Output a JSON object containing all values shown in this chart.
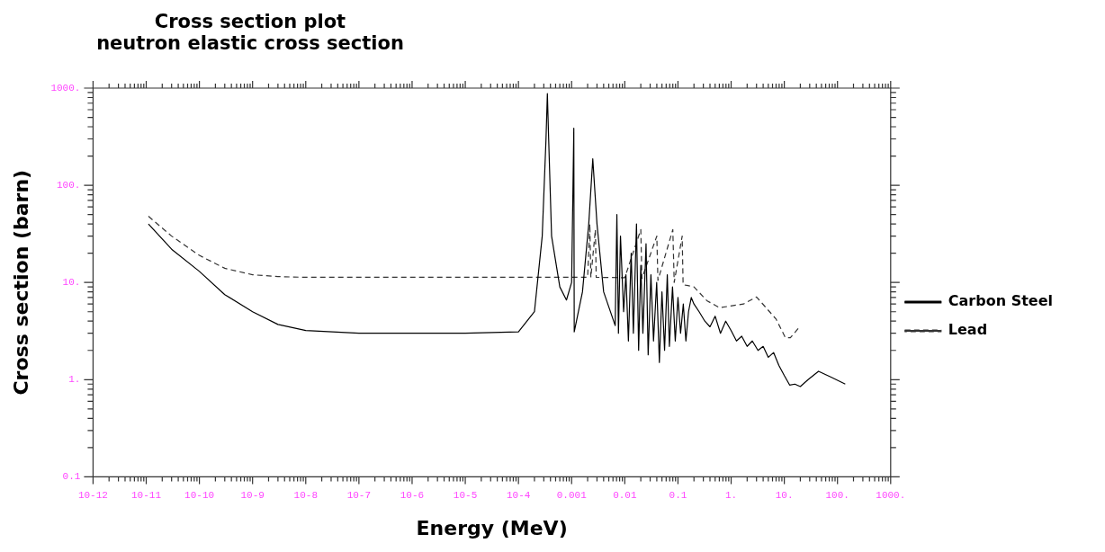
{
  "chart_data": {
    "type": "line",
    "title": "Cross section plot",
    "subtitle": "neutron elastic cross section",
    "xlabel": "Energy (MeV)",
    "ylabel": "Cross section (barn)",
    "log": "xy",
    "grid": false,
    "legend": "right",
    "marker": "none",
    "xlim": [
      1e-12,
      1000
    ],
    "ylim": [
      0.1,
      1000
    ],
    "xticks": [
      {
        "value": 1e-12,
        "label": "10-12"
      },
      {
        "value": 1e-11,
        "label": "10-11"
      },
      {
        "value": 1e-10,
        "label": "10-10"
      },
      {
        "value": 1e-09,
        "label": "10-9"
      },
      {
        "value": 1e-08,
        "label": "10-8"
      },
      {
        "value": 1e-07,
        "label": "10-7"
      },
      {
        "value": 1e-06,
        "label": "10-6"
      },
      {
        "value": 1e-05,
        "label": "10-5"
      },
      {
        "value": 0.0001,
        "label": "10-4"
      },
      0.001,
      0.01,
      0.1,
      {
        "value": 1,
        "label": "1."
      },
      {
        "value": 10,
        "label": "10."
      },
      {
        "value": 100,
        "label": "100."
      },
      {
        "value": 1000,
        "label": "1000."
      }
    ],
    "yticks": [
      0.1,
      {
        "value": 1,
        "label": "1."
      },
      {
        "value": 10,
        "label": "10."
      },
      {
        "value": 100,
        "label": "100."
      },
      {
        "value": 1000,
        "label": "1000."
      }
    ],
    "series": [
      {
        "name": "Carbon Steel",
        "color": "#000000",
        "line_style": "solid",
        "x": [
          1.1e-11,
          3e-11,
          1e-10,
          3e-10,
          1e-09,
          3e-09,
          1e-08,
          1e-07,
          1e-05,
          0.0001,
          0.0002,
          0.00028,
          0.00033,
          0.00035,
          0.00037,
          0.00042,
          0.0006,
          0.0008,
          0.001,
          0.0011,
          0.00112,
          0.0016,
          0.0021,
          0.0025,
          0.003,
          0.004,
          0.0066,
          0.0071,
          0.0076,
          0.0083,
          0.0095,
          0.0105,
          0.0117,
          0.0132,
          0.0145,
          0.0166,
          0.0182,
          0.02,
          0.0219,
          0.0251,
          0.0275,
          0.031,
          0.0347,
          0.0398,
          0.0447,
          0.05,
          0.056,
          0.063,
          0.069,
          0.079,
          0.089,
          0.1,
          0.112,
          0.126,
          0.141,
          0.158,
          0.178,
          0.2,
          0.25,
          0.32,
          0.4,
          0.5,
          0.63,
          0.79,
          1,
          1.26,
          1.58,
          2,
          2.5,
          3.2,
          4,
          5,
          6.3,
          7.9,
          10,
          12.6,
          15.8,
          20,
          28,
          44,
          79,
          140
        ],
        "values": [
          40,
          22,
          13,
          7.5,
          5,
          3.7,
          3.2,
          3,
          3,
          3.1,
          5,
          30,
          300,
          880,
          300,
          30,
          9,
          6.6,
          10,
          386,
          3.1,
          8,
          40,
          187,
          40,
          8,
          3.6,
          50,
          3,
          30,
          5,
          12,
          2.5,
          20,
          3,
          40,
          2,
          15,
          3,
          25,
          1.8,
          12,
          2.5,
          10,
          1.5,
          8,
          2,
          12,
          2.2,
          9,
          2.5,
          7,
          3,
          6,
          2.5,
          5,
          7,
          6,
          5,
          4,
          3.5,
          4.5,
          3,
          4,
          3.2,
          2.5,
          2.8,
          2.2,
          2.5,
          2,
          2.2,
          1.7,
          1.9,
          1.4,
          1.1,
          0.88,
          0.9,
          0.85,
          1,
          1.22,
          1.05,
          0.9
        ]
      },
      {
        "name": "Lead",
        "color": "#333333",
        "line_style": "dashed",
        "x": [
          1.1e-11,
          3e-11,
          1e-10,
          3e-10,
          1e-09,
          3e-09,
          1e-08,
          1e-06,
          0.002,
          0.0022,
          0.0023,
          0.0028,
          0.0029,
          0.01,
          0.02,
          0.021,
          0.04,
          0.042,
          0.08,
          0.085,
          0.12,
          0.125,
          0.2,
          0.35,
          0.6,
          1.7,
          3,
          7,
          10.5,
          13,
          18.6
        ],
        "values": [
          48,
          30,
          19,
          14,
          12,
          11.5,
          11.3,
          11.3,
          11.3,
          40,
          11.3,
          35,
          11.3,
          11.2,
          35,
          11,
          30,
          10.5,
          35,
          10,
          30,
          9.5,
          9,
          6.5,
          5.5,
          6,
          7.1,
          4.2,
          2.7,
          2.7,
          3.4
        ]
      }
    ]
  }
}
